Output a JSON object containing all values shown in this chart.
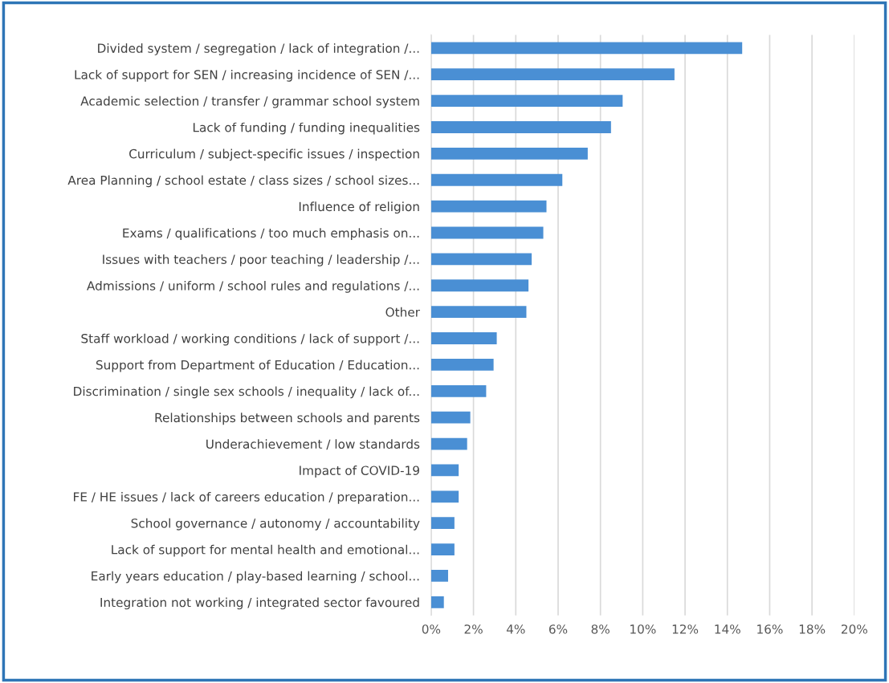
{
  "chart_data": {
    "type": "bar",
    "orientation": "horizontal",
    "categories": [
      "Divided system / segregation / lack of integration /...",
      "Lack of support for SEN / increasing incidence of SEN /...",
      "Academic selection / transfer / grammar school system",
      "Lack of funding / funding inequalities",
      "Curriculum / subject-specific issues / inspection",
      "Area Planning / school estate / class sizes / school sizes...",
      "Influence of religion",
      "Exams / qualifications / too much emphasis on...",
      "Issues with teachers / poor teaching / leadership /...",
      "Admissions / uniform / school rules and regulations /...",
      "Other",
      "Staff workload / working conditions / lack of support /...",
      "Support from Department of Education / Education...",
      "Discrimination / single sex schools / inequality / lack of...",
      "Relationships between schools and parents",
      "Underachievement / low standards",
      "Impact of COVID-19",
      "FE / HE issues / lack of careers education / preparation...",
      "School governance / autonomy / accountability",
      "Lack of support for mental health and emotional...",
      "Early years education / play-based learning / school...",
      "Integration not working / integrated sector favoured"
    ],
    "values": [
      14.7,
      11.5,
      9.05,
      8.5,
      7.4,
      6.2,
      5.45,
      5.3,
      4.75,
      4.6,
      4.5,
      3.1,
      2.95,
      2.6,
      1.85,
      1.7,
      1.3,
      1.3,
      1.1,
      1.1,
      0.8,
      0.6
    ],
    "color": "#4a8fd4",
    "xlim": [
      0,
      20
    ],
    "xticks": [
      {
        "value": 0,
        "label": "0%"
      },
      {
        "value": 2,
        "label": "2%"
      },
      {
        "value": 4,
        "label": "4%"
      },
      {
        "value": 6,
        "label": "6%"
      },
      {
        "value": 8,
        "label": "8%"
      },
      {
        "value": 10,
        "label": "10%"
      },
      {
        "value": 12,
        "label": "12%"
      },
      {
        "value": 14,
        "label": "14%"
      },
      {
        "value": 16,
        "label": "16%"
      },
      {
        "value": 18,
        "label": "18%"
      },
      {
        "value": 20,
        "label": "20%"
      }
    ],
    "grid": "x",
    "legend": false
  }
}
